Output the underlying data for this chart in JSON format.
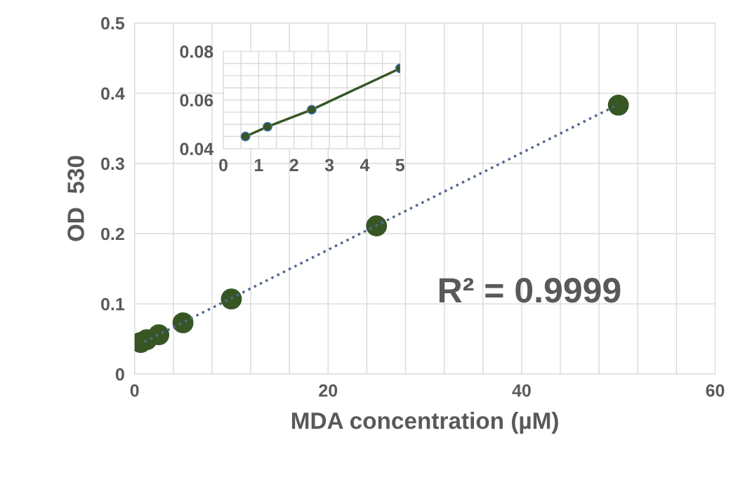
{
  "chart_data": [
    {
      "type": "scatter",
      "xlabel": "MDA concentration (µM)",
      "ylabel": "OD  530",
      "x": [
        0.625,
        1.25,
        2.5,
        5,
        10,
        25,
        50
      ],
      "series": [
        {
          "type": "scatter",
          "color": "#375623",
          "values": [
            0.045,
            0.049,
            0.056,
            0.073,
            0.107,
            0.211,
            0.383
          ]
        },
        {
          "type": "line",
          "color": "#4f6a8f",
          "line_style": "dotted",
          "marker": "none",
          "x": [
            1,
            50
          ],
          "values": [
            0.046,
            0.384
          ]
        }
      ],
      "xlim": [
        0,
        60
      ],
      "ylim": [
        0,
        0.5
      ],
      "xticks": [
        0,
        {
          "value": 4,
          "label": null
        },
        {
          "value": 8,
          "label": null
        },
        {
          "value": 12,
          "label": null
        },
        {
          "value": 16,
          "label": null
        },
        20,
        {
          "value": 24,
          "label": null
        },
        {
          "value": 28,
          "label": null
        },
        {
          "value": 32,
          "label": null
        },
        {
          "value": 36,
          "label": null
        },
        40,
        {
          "value": 44,
          "label": null
        },
        {
          "value": 48,
          "label": null
        },
        {
          "value": 52,
          "label": null
        },
        {
          "value": 56,
          "label": null
        },
        60
      ],
      "yticks": [
        0,
        0.1,
        0.2,
        0.3,
        0.4,
        0.5
      ],
      "grid": true,
      "marker": "circle",
      "annotations": [
        "R² = 0.9999"
      ]
    },
    {
      "type": "line",
      "x": [
        0.625,
        1.25,
        2.5,
        5
      ],
      "series": [
        {
          "color": "#375623",
          "values": [
            0.045,
            0.049,
            0.056,
            0.073
          ]
        }
      ],
      "xlim": [
        0,
        5
      ],
      "ylim": [
        0.04,
        0.08
      ],
      "xticks": [
        0,
        {
          "value": 0.5,
          "label": null
        },
        1,
        {
          "value": 1.5,
          "label": null
        },
        2,
        {
          "value": 2.5,
          "label": null
        },
        3,
        {
          "value": 3.5,
          "label": null
        },
        4,
        {
          "value": 4.5,
          "label": null
        },
        5
      ],
      "yticks": [
        0.04,
        {
          "value": 0.045,
          "label": null
        },
        {
          "value": 0.05,
          "label": null
        },
        {
          "value": 0.055,
          "label": null
        },
        0.06,
        {
          "value": 0.065,
          "label": null
        },
        {
          "value": 0.07,
          "label": null
        },
        {
          "value": 0.075,
          "label": null
        },
        0.08
      ],
      "grid": true,
      "marker": "circle",
      "line_style": "solid"
    }
  ]
}
